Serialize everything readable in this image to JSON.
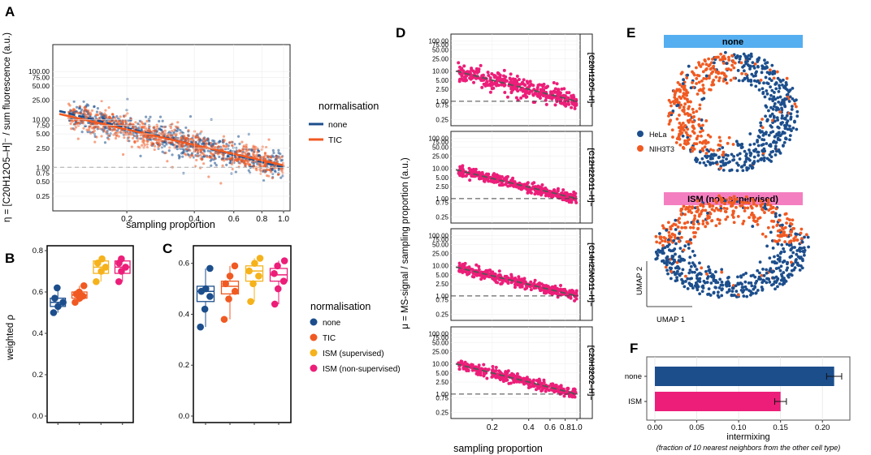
{
  "colors": {
    "none": "#1c4e8c",
    "tic": "#f05a22",
    "ism_sup": "#f5b21b",
    "ism_nonsup": "#ec1e79",
    "hela": "#1c4e8c",
    "nih3t3": "#f05a22",
    "banner_none": "#55aef0",
    "banner_ism": "#f47fc0",
    "mean_line": "#555555"
  },
  "panels": {
    "A": "A",
    "B": "B",
    "C": "C",
    "D": "D",
    "E": "E",
    "F": "F"
  },
  "legendA": {
    "title": "normalisation",
    "items": [
      "none",
      "TIC"
    ]
  },
  "legendBC": {
    "title": "normalisation",
    "items": [
      "none",
      "TIC",
      "ISM (supervised)",
      "ISM (non-supervised)"
    ]
  },
  "chart_data": [
    {
      "panel": "A",
      "type": "scatter",
      "title": "",
      "ylabel": "η = [C20H12O5–H]⁻ / sum fluorescence (a.u.)",
      "xlabel": "sampling proportion",
      "x_scale": "log",
      "y_scale": "log",
      "xlim": [
        0.1,
        1.0
      ],
      "ylim": [
        0.15,
        300
      ],
      "xticks": [
        {
          "v": 0.2,
          "label": "0.2"
        },
        {
          "v": 0.4,
          "label": "0.4"
        },
        {
          "v": 0.6,
          "label": "0.6"
        },
        {
          "v": 0.8,
          "label": "0.8"
        },
        {
          "v": 1.0,
          "label": "1.0"
        }
      ],
      "yticks": [
        {
          "v": 0.25,
          "label": "0.25"
        },
        {
          "v": 0.5,
          "label": "0.50"
        },
        {
          "v": 0.75,
          "label": "0.75"
        },
        {
          "v": 1,
          "label": "1.00"
        },
        {
          "v": 2.5,
          "label": "2.50"
        },
        {
          "v": 5,
          "label": "5.00"
        },
        {
          "v": 7.5,
          "label": "7.50"
        },
        {
          "v": 10,
          "label": "10.00"
        },
        {
          "v": 25,
          "label": "25.00"
        },
        {
          "v": 50,
          "label": "50.00"
        },
        {
          "v": 75,
          "label": "75.00"
        },
        {
          "v": 100,
          "label": "100.00"
        }
      ],
      "reference_line": 1,
      "series": [
        {
          "name": "none",
          "trend": [
            [
              0.1,
              15
            ],
            [
              1.0,
              1.0
            ]
          ]
        },
        {
          "name": "TIC",
          "trend": [
            [
              0.1,
              13
            ],
            [
              1.0,
              1.1
            ]
          ]
        }
      ],
      "points_per_series": 700
    },
    {
      "panel": "B",
      "type": "box",
      "ylabel": "weighted ρ",
      "ylim": [
        0,
        0.8
      ],
      "yticks": [
        {
          "v": 0.0,
          "label": "0.0"
        },
        {
          "v": 0.2,
          "label": "0.2"
        },
        {
          "v": 0.4,
          "label": "0.4"
        },
        {
          "v": 0.6,
          "label": "0.6"
        },
        {
          "v": 0.8,
          "label": "0.8"
        }
      ],
      "groups": [
        {
          "name": "none",
          "points": [
            0.5,
            0.53,
            0.55,
            0.57,
            0.62
          ],
          "q1": 0.53,
          "median": 0.55,
          "q3": 0.57
        },
        {
          "name": "TIC",
          "points": [
            0.55,
            0.57,
            0.58,
            0.59,
            0.6,
            0.63
          ],
          "q1": 0.57,
          "median": 0.585,
          "q3": 0.6
        },
        {
          "name": "ISM (supervised)",
          "points": [
            0.65,
            0.7,
            0.72,
            0.74,
            0.76
          ],
          "q1": 0.69,
          "median": 0.72,
          "q3": 0.75
        },
        {
          "name": "ISM (non-supervised)",
          "points": [
            0.65,
            0.7,
            0.72,
            0.74,
            0.76
          ],
          "q1": 0.69,
          "median": 0.72,
          "q3": 0.75
        }
      ]
    },
    {
      "panel": "C",
      "type": "box",
      "ylim": [
        0,
        0.65
      ],
      "yticks": [
        {
          "v": 0.0,
          "label": "0.0"
        },
        {
          "v": 0.2,
          "label": "0.2"
        },
        {
          "v": 0.4,
          "label": "0.4"
        },
        {
          "v": 0.6,
          "label": "0.6"
        }
      ],
      "groups": [
        {
          "name": "none",
          "points": [
            0.35,
            0.42,
            0.47,
            0.49,
            0.5,
            0.58
          ],
          "q1": 0.45,
          "median": 0.49,
          "q3": 0.51
        },
        {
          "name": "TIC",
          "points": [
            0.38,
            0.46,
            0.49,
            0.52,
            0.55,
            0.59
          ],
          "q1": 0.48,
          "median": 0.51,
          "q3": 0.53
        },
        {
          "name": "ISM (supervised)",
          "points": [
            0.45,
            0.52,
            0.55,
            0.57,
            0.6,
            0.62
          ],
          "q1": 0.53,
          "median": 0.57,
          "q3": 0.59
        },
        {
          "name": "ISM (non-supervised)",
          "points": [
            0.44,
            0.5,
            0.53,
            0.56,
            0.59,
            0.61
          ],
          "q1": 0.53,
          "median": 0.555,
          "q3": 0.58
        }
      ]
    },
    {
      "panel": "D",
      "type": "scatter",
      "ylabel": "μ = MS-signal / sampling proportion (a.u.)",
      "xlabel": "sampling proportion",
      "x_scale": "log",
      "y_scale": "log",
      "xlim": [
        0.1,
        1.0
      ],
      "ylim": [
        0.2,
        130
      ],
      "xticks": [
        {
          "v": 0.2,
          "label": "0.2"
        },
        {
          "v": 0.4,
          "label": "0.4"
        },
        {
          "v": 0.6,
          "label": "0.6"
        },
        {
          "v": 0.8,
          "label": "0.8"
        },
        {
          "v": 1.0,
          "label": "1.0"
        }
      ],
      "xtick_labels_text": [
        "0.2",
        "0.4",
        "0.6",
        "0.81.0"
      ],
      "yticks": [
        {
          "v": 0.25,
          "label": "0.25"
        },
        {
          "v": 0.75,
          "label": "0.75"
        },
        {
          "v": 1,
          "label": "1.00"
        },
        {
          "v": 2.5,
          "label": "2.50"
        },
        {
          "v": 5,
          "label": "5.00"
        },
        {
          "v": 10,
          "label": "10.00"
        },
        {
          "v": 25,
          "label": "25.00"
        },
        {
          "v": 50,
          "label": "50.00"
        },
        {
          "v": 75,
          "label": "75.00"
        },
        {
          "v": 100,
          "label": "100.00"
        }
      ],
      "facets": [
        {
          "label": "[C20H12O5–H]–",
          "trend": [
            [
              0.1,
              10
            ],
            [
              1.0,
              1.0
            ]
          ]
        },
        {
          "label": "[C12H22O11–H]–",
          "trend": [
            [
              0.1,
              9
            ],
            [
              1.0,
              1.0
            ]
          ]
        },
        {
          "label": "[C14H25NO11–H]–",
          "trend": [
            [
              0.1,
              9
            ],
            [
              1.0,
              1.0
            ]
          ]
        },
        {
          "label": "[C20H32O2–H]–",
          "trend": [
            [
              0.1,
              10
            ],
            [
              1.0,
              1.0
            ]
          ]
        }
      ],
      "reference_line": 1
    },
    {
      "panel": "E",
      "type": "scatter",
      "subplots": [
        {
          "title": "none"
        },
        {
          "title": "ISM (non-supervised)"
        }
      ],
      "legend": [
        "HeLa",
        "NIH3T3"
      ],
      "xlabel": "UMAP 1",
      "ylabel": "UMAP 2"
    },
    {
      "panel": "F",
      "type": "bar",
      "orientation": "horizontal",
      "categories": [
        "none",
        "ISM"
      ],
      "values": [
        0.214,
        0.15
      ],
      "errors": [
        0.009,
        0.007
      ],
      "xlabel": "intermixing",
      "subtitle": "(fraction of 10 nearest neighbors from the other cell type)",
      "xlim": [
        0,
        0.225
      ],
      "xticks": [
        {
          "v": 0,
          "label": "0.00"
        },
        {
          "v": 0.05,
          "label": "0.05"
        },
        {
          "v": 0.1,
          "label": "0.10"
        },
        {
          "v": 0.15,
          "label": "0.15"
        },
        {
          "v": 0.2,
          "label": "0.20"
        }
      ]
    }
  ]
}
